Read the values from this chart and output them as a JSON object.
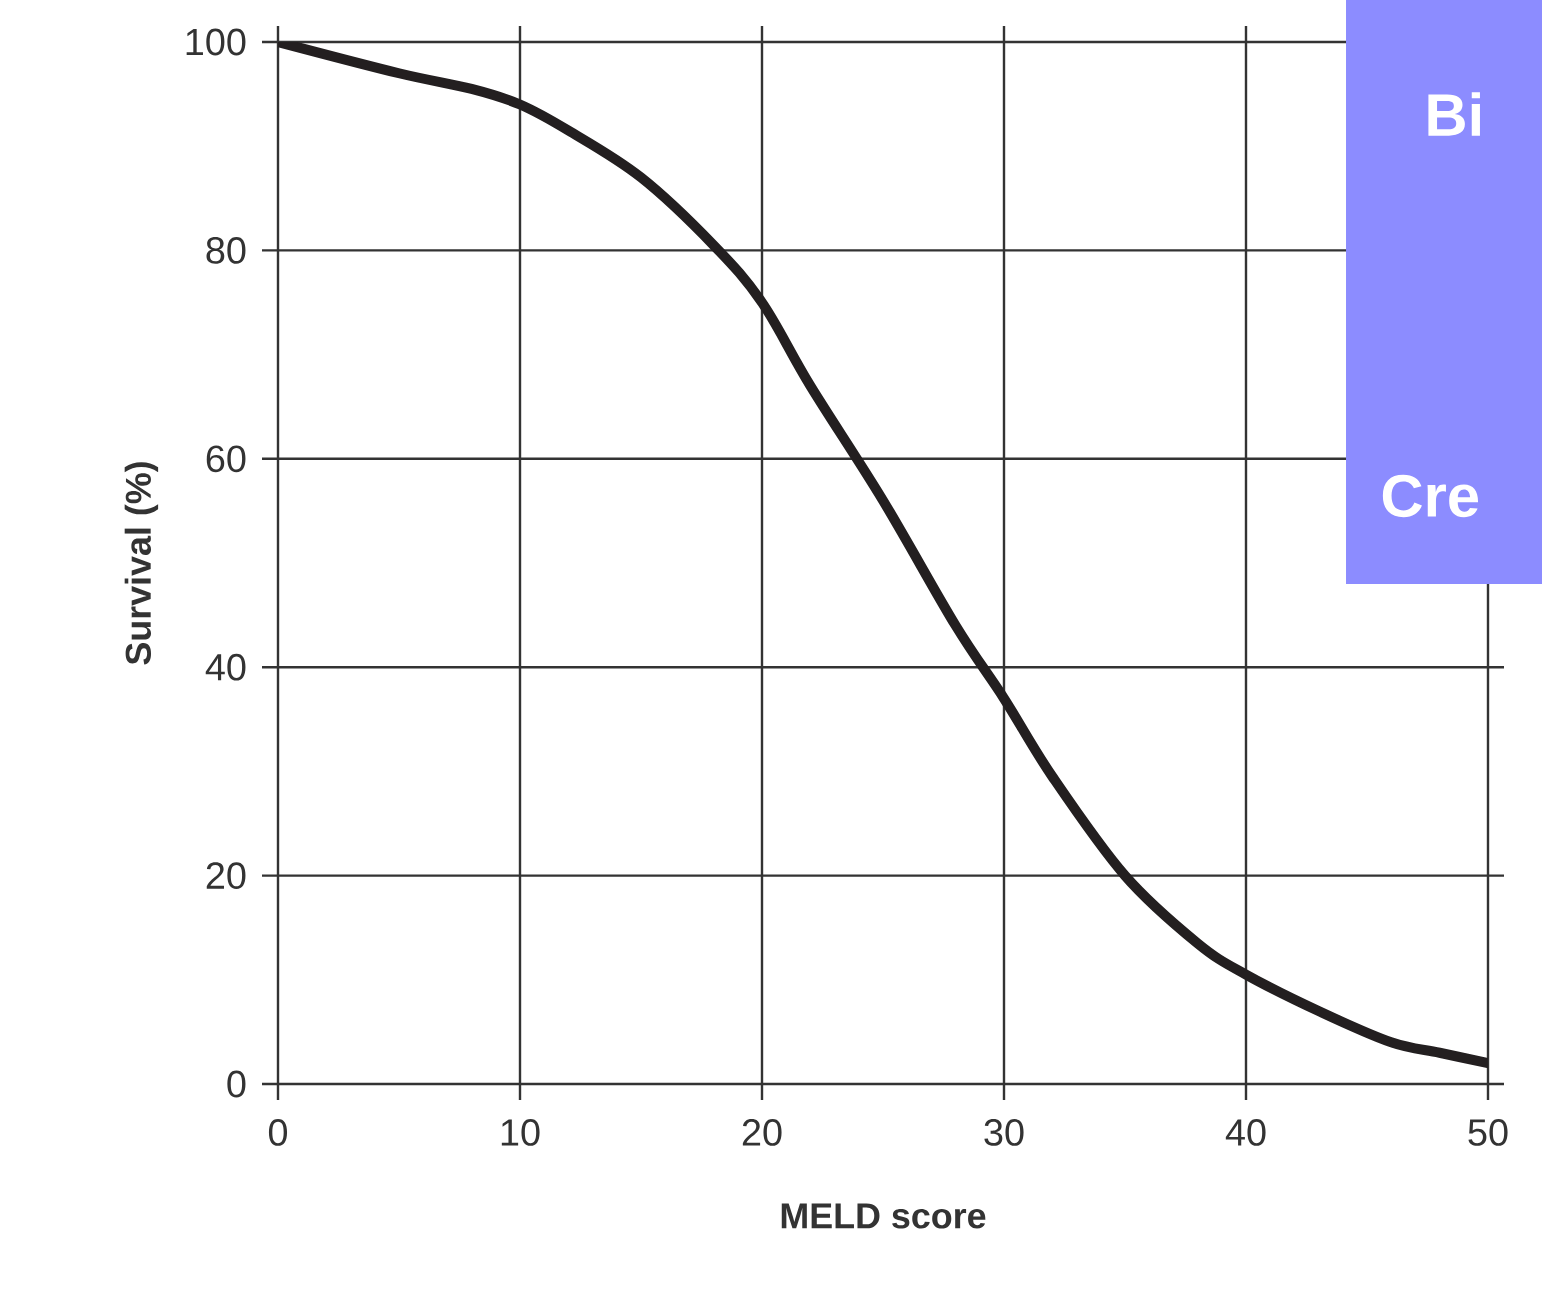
{
  "chart_data": {
    "type": "line",
    "xlabel": "MELD score",
    "ylabel": "Survival (%)",
    "x": [
      0,
      5,
      8,
      10,
      12,
      15,
      18,
      20,
      22,
      25,
      28,
      30,
      32,
      35,
      38,
      40,
      43,
      46,
      48,
      50
    ],
    "series": [
      {
        "color": "#231f20",
        "values": [
          100,
          97,
          95.5,
          94,
          91.5,
          87,
          80.5,
          75,
          67,
          56,
          44,
          37,
          29.5,
          20,
          13.5,
          10.5,
          7,
          4,
          3,
          2
        ]
      }
    ],
    "xlim": [
      0,
      50
    ],
    "ylim": [
      0,
      100
    ],
    "xticks": [
      0,
      10,
      20,
      30,
      40,
      50
    ],
    "yticks": [
      0,
      20,
      40,
      60,
      80,
      100
    ],
    "grid": true,
    "marker": "none",
    "line_style": "solid",
    "annotations": [
      "Bi",
      "Cre"
    ]
  }
}
